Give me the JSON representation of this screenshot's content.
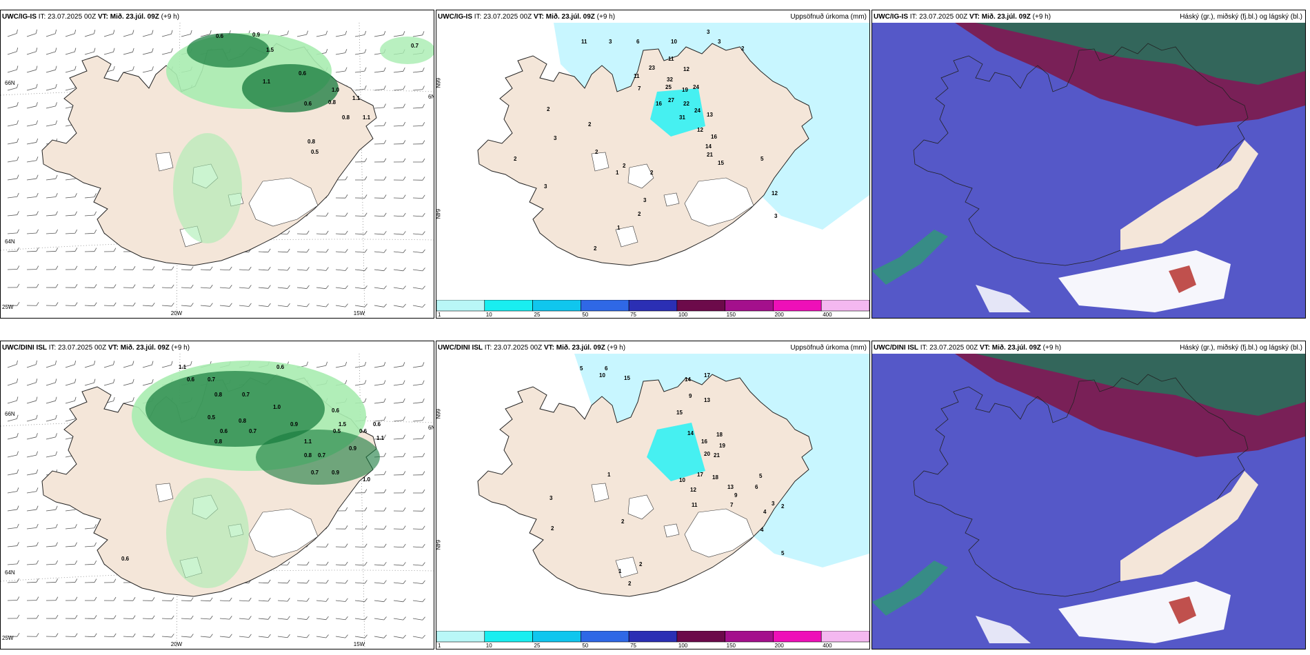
{
  "panels": [
    {
      "model": "UWC/IG-IS",
      "it_label": "IT:",
      "it_value": "23.07.2025 00Z",
      "vt_label": "VT:",
      "vt_value": "Mið. 23.júl. 09Z",
      "lead": "(+9 h)",
      "product": "",
      "labels": [
        "0.6",
        "0.9",
        "1.5",
        "0.7",
        "1.1",
        "0.6",
        "1.0",
        "0.8",
        "1.1",
        "0.6",
        "0.8",
        "0.5",
        "1.1",
        "0.8"
      ],
      "axis": [
        "20W",
        "15W",
        "66N",
        "64N",
        "25W",
        "6N"
      ]
    },
    {
      "model": "UWC/IG-IS",
      "it_label": "IT:",
      "it_value": "23.07.2025 00Z",
      "vt_label": "VT:",
      "vt_value": "Mið. 23.júl. 09Z",
      "lead": "(+9 h)",
      "product": "Uppsöfnuð úrkoma (mm)",
      "labels": [
        "11",
        "3",
        "6",
        "10",
        "3",
        "3",
        "2",
        "11",
        "12",
        "23",
        "32",
        "11",
        "7",
        "25",
        "19",
        "24",
        "27",
        "22",
        "16",
        "31",
        "24",
        "13",
        "12",
        "16",
        "14",
        "21",
        "15",
        "2",
        "3",
        "2",
        "2",
        "2",
        "1",
        "2",
        "3",
        "1",
        "2",
        "2",
        "2",
        "3",
        "5",
        "12",
        "3"
      ],
      "axis": [
        "66N",
        "64N"
      ]
    },
    {
      "model": "UWC/IG-IS",
      "it_label": "IT:",
      "it_value": "23.07.2025 00Z",
      "vt_label": "VT:",
      "vt_value": "Mið. 23.júl. 09Z",
      "lead": "(+9 h)",
      "product": "Háský (gr.), miðský (fj.bl.) og lágský (bl.)",
      "labels": [],
      "axis": []
    },
    {
      "model": "UWC/DINI ISL",
      "it_label": "IT:",
      "it_value": "23.07.2025 00Z",
      "vt_label": "VT:",
      "vt_value": "Mið. 23.júl. 09Z",
      "lead": "(+9 h)",
      "product": "",
      "labels": [
        "1.1",
        "0.6",
        "0.7",
        "0.6",
        "0.8",
        "0.7",
        "1.0",
        "0.8",
        "0.5",
        "0.6",
        "0.8",
        "0.7",
        "0.9",
        "1.1",
        "0.6",
        "0.5",
        "0.6",
        "0.8",
        "1.5",
        "0.7",
        "0.9",
        "0.6",
        "1.1",
        "0.7",
        "0.9",
        "1.0",
        "0.6"
      ],
      "axis": [
        "20W",
        "15W",
        "66N",
        "64N",
        "25W",
        "6N"
      ]
    },
    {
      "model": "UWC/DINI ISL",
      "it_label": "IT:",
      "it_value": "23.07.2025 00Z",
      "vt_label": "VT:",
      "vt_value": "Mið. 23.júl. 09Z",
      "lead": "(+9 h)",
      "product": "Uppsöfnuð úrkoma (mm)",
      "labels": [
        "5",
        "6",
        "10",
        "15",
        "14",
        "17",
        "13",
        "9",
        "15",
        "14",
        "18",
        "16",
        "19",
        "20",
        "21",
        "17",
        "18",
        "10",
        "12",
        "13",
        "9",
        "11",
        "7",
        "6",
        "5",
        "4",
        "3",
        "2",
        "1",
        "2",
        "3",
        "2",
        "2",
        "1",
        "2",
        "4",
        "5"
      ],
      "axis": [
        "66N",
        "64N"
      ]
    },
    {
      "model": "UWC/DINI ISL",
      "it_label": "IT:",
      "it_value": "23.07.2025 00Z",
      "vt_label": "VT:",
      "vt_value": "Mið. 23.júl. 09Z",
      "lead": "(+9 h)",
      "product": "Háský (gr.), miðský (fj.bl.) og lágský (bl.)",
      "labels": [],
      "axis": []
    }
  ],
  "colorbar": {
    "ticks": [
      "1",
      "10",
      "25",
      "50",
      "75",
      "100",
      "150",
      "200",
      "400"
    ],
    "colors": [
      "#b9f7f7",
      "#19eef0",
      "#10c6ee",
      "#2f68e6",
      "#2b2fb4",
      "#6c0a4a",
      "#a4108c",
      "#ee10b8",
      "#f4b8f0"
    ]
  },
  "colors": {
    "land": "#f4e6d9",
    "water": "#ffffff",
    "precip_light": "#c8f6ff",
    "precip_mid": "#3cf0f2",
    "green_light": "#a8ecb0",
    "green_dark": "#157a3c",
    "cloud_high_dark": "#2b6e5c",
    "cloud_mid": "#7d1b4a",
    "cloud_low": "#5558c8"
  }
}
